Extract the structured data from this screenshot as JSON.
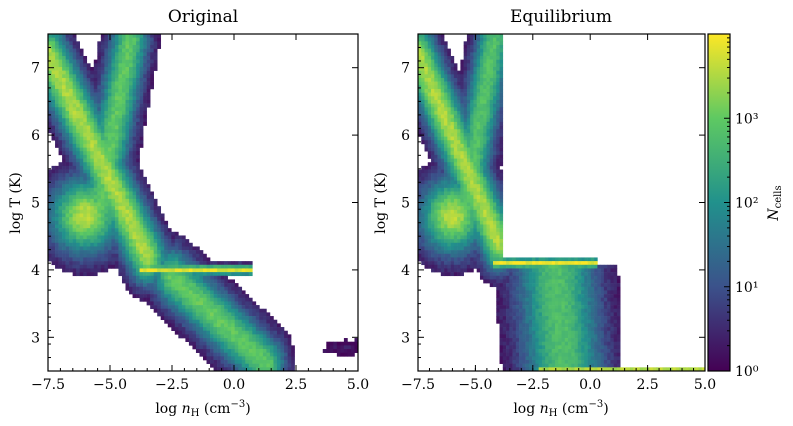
{
  "chart_data": [
    {
      "type": "heatmap",
      "title": "Original",
      "xlabel": "log nH (cm−3)",
      "ylabel": "log T (K)",
      "xlim": [
        -7.5,
        5.0
      ],
      "ylim": [
        2.5,
        7.5
      ],
      "xticks": [
        -7.5,
        -5.0,
        -2.5,
        0.0,
        2.5,
        5.0
      ],
      "xtick_labels": [
        "−7.5",
        "−5.0",
        "−2.5",
        "0.0",
        "2.5",
        "5.0"
      ],
      "yticks": [
        3,
        4,
        5,
        6,
        7
      ],
      "ytick_labels": [
        "3",
        "4",
        "5",
        "6",
        "7"
      ],
      "density_features": [
        {
          "shape": "diagonal-band",
          "from": [
            -7.5,
            7.2
          ],
          "to": [
            -3.5,
            4.2
          ],
          "log_count": 3.5
        },
        {
          "shape": "plume",
          "from": [
            -5.5,
            4.8
          ],
          "to": [
            -4.2,
            7.4
          ],
          "log_count": 2.3
        },
        {
          "shape": "blob",
          "center": [
            -6.0,
            4.8
          ],
          "log_count": 3.6
        },
        {
          "shape": "horizontal-band",
          "from": [
            -3.5,
            4.0
          ],
          "to": [
            0.5,
            4.0
          ],
          "log_count": 3.8
        },
        {
          "shape": "diagonal-band",
          "from": [
            -2.5,
            3.9
          ],
          "to": [
            1.3,
            2.6
          ],
          "log_count": 3.0
        },
        {
          "shape": "isolated-patch",
          "center": [
            4.5,
            2.85
          ],
          "log_count": 0.3
        }
      ]
    },
    {
      "type": "heatmap",
      "title": "Equilibrium",
      "xlabel": "log nH (cm−3)",
      "ylabel": "log T (K)",
      "xlim": [
        -7.5,
        5.0
      ],
      "ylim": [
        2.5,
        7.5
      ],
      "xticks": [
        -7.5,
        -5.0,
        -2.5,
        0.0,
        2.5,
        5.0
      ],
      "xtick_labels": [
        "−7.5",
        "−5.0",
        "−2.5",
        "0.0",
        "2.5",
        "5.0"
      ],
      "yticks": [
        3,
        4,
        5,
        6,
        7
      ],
      "ytick_labels": [
        "3",
        "4",
        "5",
        "6",
        "7"
      ],
      "density_features": [
        {
          "shape": "diagonal-band",
          "from": [
            -7.5,
            7.2
          ],
          "to": [
            -4.0,
            4.4
          ],
          "log_count": 3.5
        },
        {
          "shape": "plume",
          "from": [
            -5.5,
            4.8
          ],
          "to": [
            -4.2,
            7.4
          ],
          "log_count": 2.2
        },
        {
          "shape": "blob",
          "center": [
            -6.0,
            4.8
          ],
          "log_count": 3.6
        },
        {
          "shape": "horizontal-band",
          "from": [
            -4.0,
            4.1
          ],
          "to": [
            0.0,
            4.1
          ],
          "log_count": 3.9
        },
        {
          "shape": "vertical-column",
          "from": [
            -2.5,
            4.0
          ],
          "to": [
            -0.5,
            2.5
          ],
          "log_count": 2.8
        },
        {
          "shape": "floor-line",
          "from": [
            -2.0,
            2.52
          ],
          "to": [
            5.0,
            2.52
          ],
          "log_count": 3.8
        }
      ]
    }
  ],
  "colorbar": {
    "label": "Ncells",
    "scale": "log",
    "range": [
      1,
      10000
    ],
    "ticks": [
      {
        "value": 1,
        "label": "10⁰"
      },
      {
        "value": 10,
        "label": "10¹"
      },
      {
        "value": 100,
        "label": "10²"
      },
      {
        "value": 1000,
        "label": "10³"
      }
    ],
    "colors": [
      "#440154",
      "#3b528b",
      "#21918c",
      "#5ec962",
      "#fde725"
    ]
  }
}
